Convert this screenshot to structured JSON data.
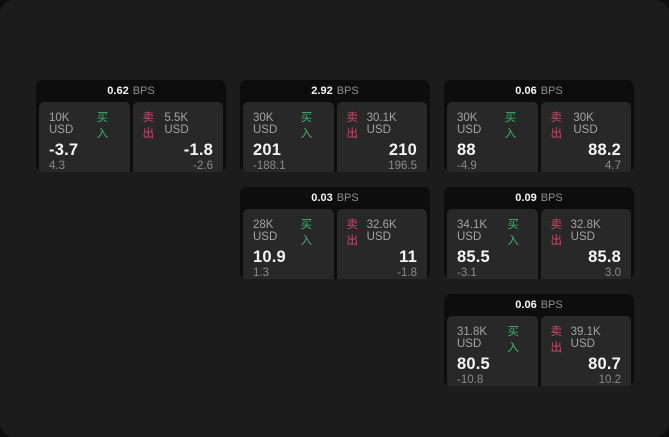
{
  "labels": {
    "buy": "买入",
    "sell": "卖出",
    "bps": "BPS"
  },
  "colors": {
    "buy": "#3eb36c",
    "sell": "#cb4a6b",
    "card_background": "#0d0d0d",
    "panel_background": "#282828",
    "screen_background": "#1c1c1c"
  },
  "cards": [
    {
      "row": 1,
      "col": 1,
      "bps": "0.62",
      "buy": {
        "size": "10K USD",
        "price": "-3.7",
        "delta": "4.3"
      },
      "sell": {
        "size": "5.5K USD",
        "price": "-1.8",
        "delta": "-2.6"
      }
    },
    {
      "row": 1,
      "col": 2,
      "bps": "2.92",
      "buy": {
        "size": "30K USD",
        "price": "201",
        "delta": "-188.1"
      },
      "sell": {
        "size": "30.1K USD",
        "price": "210",
        "delta": "196.5"
      }
    },
    {
      "row": 1,
      "col": 3,
      "bps": "0.06",
      "buy": {
        "size": "30K USD",
        "price": "88",
        "delta": "-4.9"
      },
      "sell": {
        "size": "30K USD",
        "price": "88.2",
        "delta": "4.7"
      }
    },
    {
      "row": 2,
      "col": 2,
      "bps": "0.03",
      "buy": {
        "size": "28K USD",
        "price": "10.9",
        "delta": "1.3"
      },
      "sell": {
        "size": "32.6K USD",
        "price": "11",
        "delta": "-1.8"
      }
    },
    {
      "row": 2,
      "col": 3,
      "bps": "0.09",
      "buy": {
        "size": "34.1K USD",
        "price": "85.5",
        "delta": "-3.1"
      },
      "sell": {
        "size": "32.8K USD",
        "price": "85.8",
        "delta": "3.0"
      }
    },
    {
      "row": 3,
      "col": 3,
      "bps": "0.06",
      "buy": {
        "size": "31.8K USD",
        "price": "80.5",
        "delta": "-10.8"
      },
      "sell": {
        "size": "39.1K USD",
        "price": "80.7",
        "delta": "10.2"
      }
    }
  ]
}
